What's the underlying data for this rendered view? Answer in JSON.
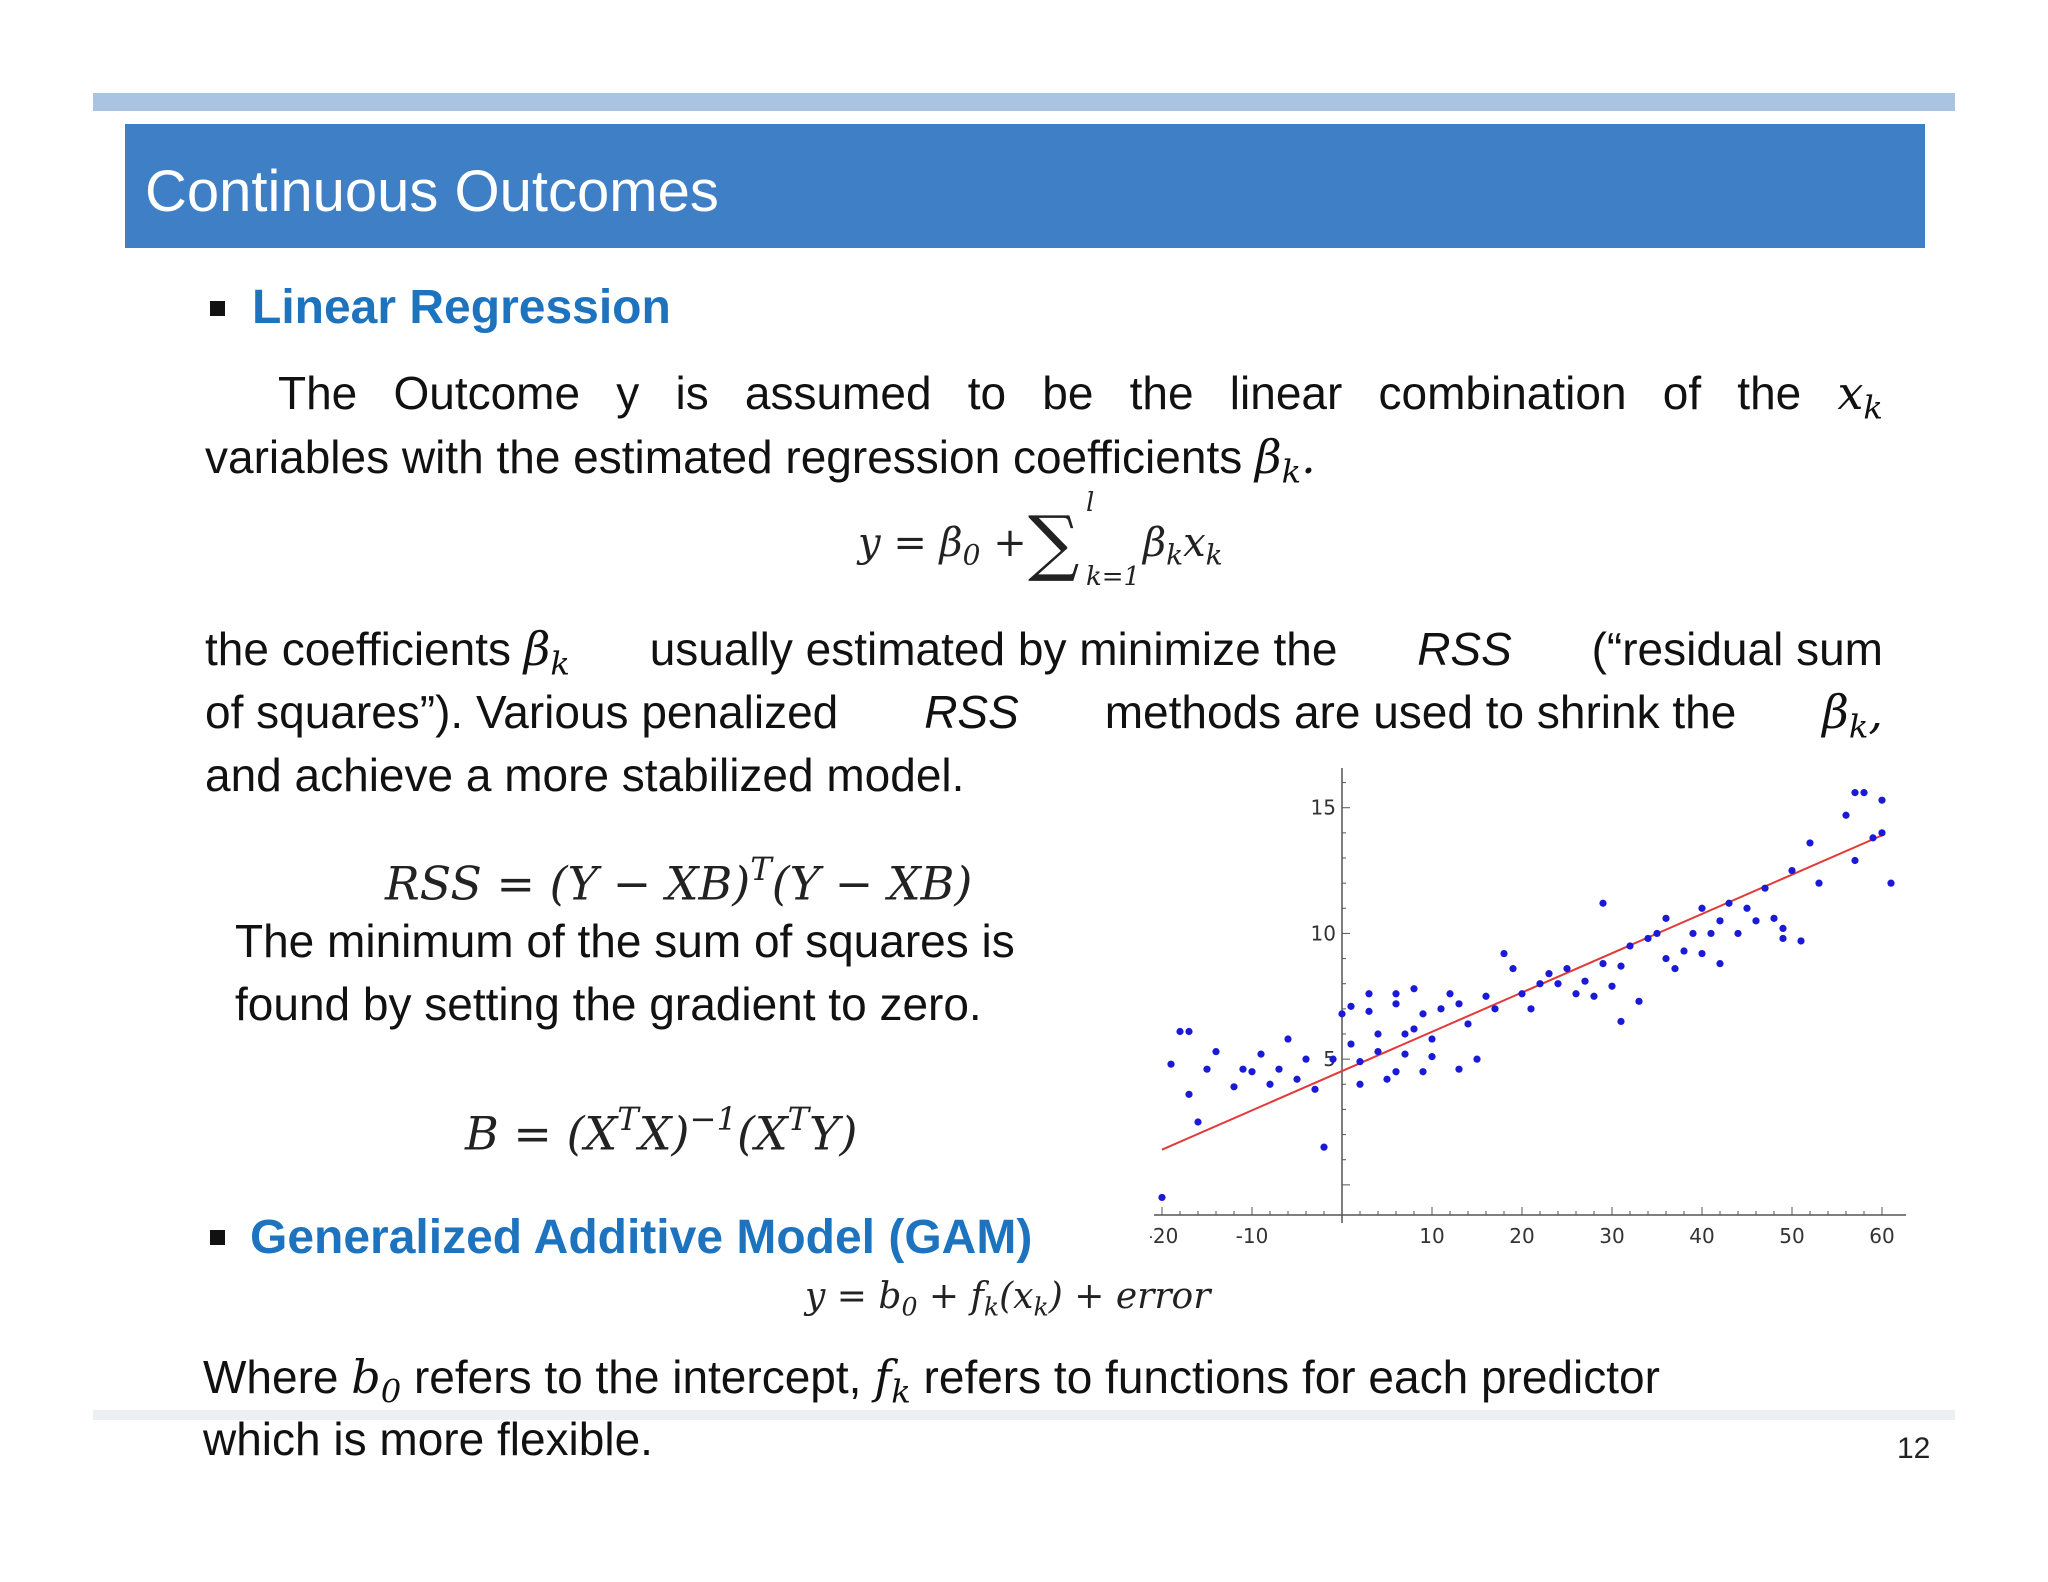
{
  "slide": {
    "title": "Continuous Outcomes",
    "page_number": "12"
  },
  "linear_regression": {
    "heading": "Linear Regression",
    "para1_line1_words": [
      "The",
      "Outcome",
      "y",
      "is",
      "assumed",
      "to",
      "be",
      "the",
      "linear",
      "combination",
      "of",
      "the"
    ],
    "para1_line1_math": "x_k",
    "para1_line2_text": "variables with the estimated regression coefficients",
    "para1_line2_math": "β_k.",
    "formula1": "y = β0 + Σ_{k=1}^{l} βk xk",
    "para2_line1_a": "the coefficients",
    "para2_line1_b": "usually estimated by minimize the",
    "rss_label": "RSS",
    "para2_line1_c": "(“residual sum",
    "para2_line2_a": "of squares”). Various penalized",
    "para2_line2_b": "methods are used to shrink the",
    "para2_line3": "and achieve a more stabilized model.",
    "formula_rss": "RSS = (Y − XB)^T (Y − XB)",
    "min_line1": "The minimum of the sum of squares is",
    "min_line2": "found by setting the gradient to zero.",
    "formula_solution": "B = (X^T X)^−1 (X^T Y)"
  },
  "gam": {
    "heading": "Generalized Additive Model (GAM)",
    "formula": "y = b0 + fk(xk) + error",
    "line1_a": "Where",
    "line1_b": "refers to the intercept,",
    "line1_c": "refers to functions for each predictor",
    "line2": "which is more flexible."
  },
  "chart_data": {
    "type": "scatter",
    "title": "",
    "xlabel": "",
    "ylabel": "",
    "xlim": [
      -20,
      62
    ],
    "ylim": [
      -1,
      16.5
    ],
    "x_ticks": [
      -20,
      -10,
      10,
      20,
      30,
      40,
      50,
      60
    ],
    "y_ticks": [
      5,
      10,
      15
    ],
    "grid": false,
    "colors": {
      "points": "#1a1ad6",
      "fit_line": "#e23a3a"
    },
    "fit_line": {
      "x": [
        -20,
        60
      ],
      "y": [
        1.4,
        13.9
      ]
    },
    "points": [
      [
        -20,
        -0.5
      ],
      [
        -19,
        4.8
      ],
      [
        -18,
        6.1
      ],
      [
        -17,
        6.1
      ],
      [
        -17,
        3.6
      ],
      [
        -16,
        2.5
      ],
      [
        -15,
        4.6
      ],
      [
        -14,
        5.3
      ],
      [
        -12,
        3.9
      ],
      [
        -11,
        4.6
      ],
      [
        -10,
        4.5
      ],
      [
        -9,
        5.2
      ],
      [
        -8,
        4.0
      ],
      [
        -7,
        4.6
      ],
      [
        -6,
        5.8
      ],
      [
        -5,
        4.2
      ],
      [
        -4,
        5.0
      ],
      [
        -3,
        3.8
      ],
      [
        -2,
        1.5
      ],
      [
        -1,
        5.0
      ],
      [
        0,
        6.8
      ],
      [
        1,
        7.1
      ],
      [
        1,
        5.6
      ],
      [
        2,
        4.9
      ],
      [
        2,
        4.0
      ],
      [
        3,
        7.6
      ],
      [
        3,
        6.9
      ],
      [
        4,
        5.3
      ],
      [
        4,
        6.0
      ],
      [
        5,
        4.2
      ],
      [
        6,
        4.5
      ],
      [
        6,
        7.2
      ],
      [
        6,
        7.6
      ],
      [
        7,
        6.0
      ],
      [
        7,
        5.2
      ],
      [
        8,
        6.2
      ],
      [
        8,
        7.8
      ],
      [
        9,
        4.5
      ],
      [
        9,
        6.8
      ],
      [
        10,
        5.1
      ],
      [
        10,
        5.8
      ],
      [
        11,
        7.0
      ],
      [
        12,
        7.6
      ],
      [
        13,
        4.6
      ],
      [
        13,
        7.2
      ],
      [
        14,
        6.4
      ],
      [
        15,
        5.0
      ],
      [
        16,
        7.5
      ],
      [
        17,
        7.0
      ],
      [
        18,
        9.2
      ],
      [
        19,
        8.6
      ],
      [
        20,
        7.6
      ],
      [
        21,
        7.0
      ],
      [
        22,
        8.0
      ],
      [
        23,
        8.4
      ],
      [
        24,
        8.0
      ],
      [
        25,
        8.6
      ],
      [
        26,
        7.6
      ],
      [
        27,
        8.1
      ],
      [
        28,
        7.5
      ],
      [
        29,
        8.8
      ],
      [
        29,
        11.2
      ],
      [
        30,
        7.9
      ],
      [
        31,
        8.7
      ],
      [
        31,
        6.5
      ],
      [
        32,
        9.5
      ],
      [
        33,
        7.3
      ],
      [
        34,
        9.8
      ],
      [
        35,
        10.0
      ],
      [
        36,
        10.6
      ],
      [
        36,
        9.0
      ],
      [
        37,
        8.6
      ],
      [
        38,
        9.3
      ],
      [
        39,
        10.0
      ],
      [
        40,
        11.0
      ],
      [
        40,
        9.2
      ],
      [
        41,
        10.0
      ],
      [
        42,
        10.5
      ],
      [
        42,
        8.8
      ],
      [
        43,
        11.2
      ],
      [
        44,
        10.0
      ],
      [
        45,
        11.0
      ],
      [
        46,
        10.5
      ],
      [
        47,
        11.8
      ],
      [
        48,
        10.6
      ],
      [
        49,
        10.2
      ],
      [
        49,
        9.8
      ],
      [
        50,
        12.5
      ],
      [
        51,
        9.7
      ],
      [
        52,
        13.6
      ],
      [
        53,
        12.0
      ],
      [
        56,
        14.7
      ],
      [
        57,
        12.9
      ],
      [
        58,
        15.6
      ],
      [
        59,
        13.8
      ],
      [
        60,
        15.3
      ],
      [
        60,
        14.0
      ],
      [
        61,
        12.0
      ],
      [
        57,
        15.6
      ]
    ]
  }
}
